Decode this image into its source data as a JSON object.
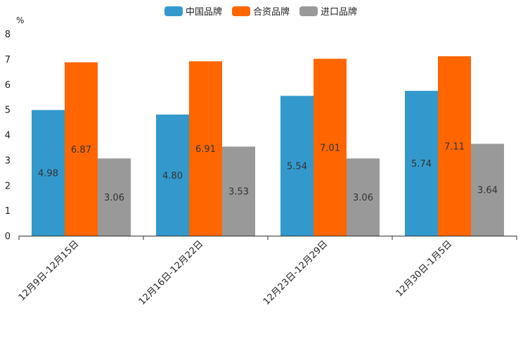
{
  "chart_data": {
    "type": "bar",
    "title": "",
    "ylabel": "%",
    "xlabel": "",
    "ylim": [
      0,
      8
    ],
    "yticks": [
      "0",
      "1",
      "2",
      "3",
      "4",
      "5",
      "6",
      "7",
      "8"
    ],
    "categories": [
      "12月9日-12月15日",
      "12月16日-12月22日",
      "12月23日-12月29日",
      "12月30日-1月5日"
    ],
    "series": [
      {
        "name": "中国品牌",
        "color": "#3399cc",
        "values": [
          4.98,
          4.8,
          5.54,
          5.74
        ],
        "labels": [
          "4.98",
          "4.80",
          "5.54",
          "5.74"
        ]
      },
      {
        "name": "合资品牌",
        "color": "#ff6600",
        "values": [
          6.87,
          6.91,
          7.01,
          7.11
        ],
        "labels": [
          "6.87",
          "6.91",
          "7.01",
          "7.11"
        ]
      },
      {
        "name": "进口品牌",
        "color": "#999999",
        "values": [
          3.06,
          3.53,
          3.06,
          3.64
        ],
        "labels": [
          "3.06",
          "3.53",
          "3.06",
          "3.64"
        ]
      }
    ],
    "legend_position": "top-center",
    "grid": false
  }
}
